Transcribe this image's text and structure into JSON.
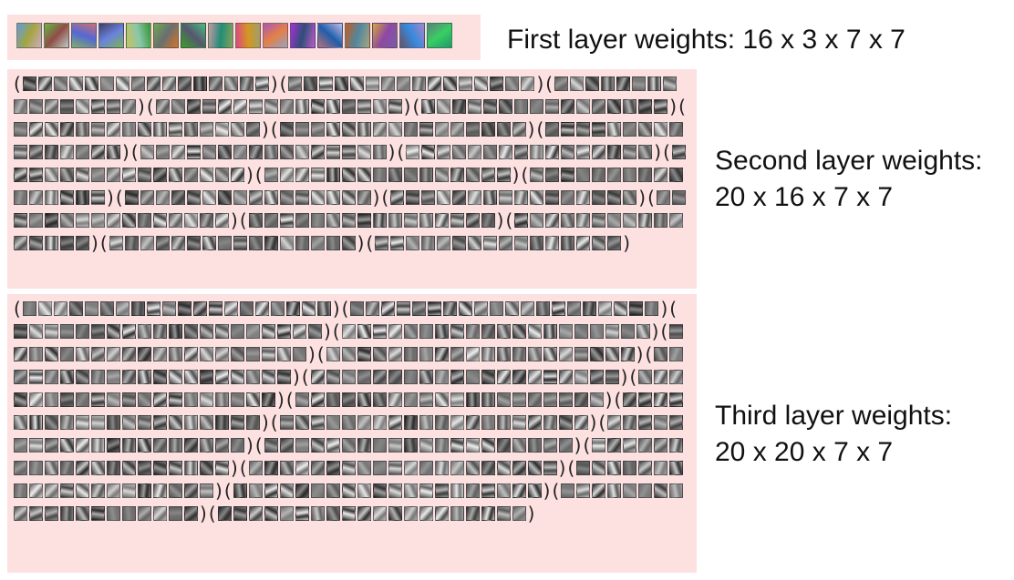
{
  "labels": {
    "first_title": "First layer weights:",
    "first_dims": "16 x 3 x 7 x 7",
    "second_title": "Second layer weights:",
    "second_dims": "20 x 16 x 7 x 7",
    "third_title": "Third layer weights:",
    "third_dims": "20 x 20 x 7 x 7"
  },
  "layers": [
    {
      "name": "first",
      "filters": 16,
      "in_channels": 3,
      "kernel": 7
    },
    {
      "name": "second",
      "filters": 20,
      "in_channels": 16,
      "kernel": 7
    },
    {
      "name": "third",
      "filters": 20,
      "in_channels": 20,
      "kernel": 7
    }
  ],
  "colors": {
    "panel_background": "#fde0e0",
    "text": "#111111"
  }
}
